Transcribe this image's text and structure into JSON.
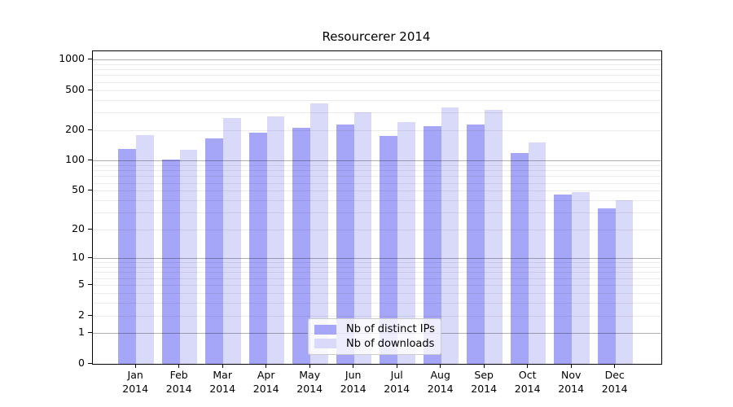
{
  "figure": {
    "background": "#ffffff"
  },
  "chart_data": {
    "type": "bar",
    "title": "Resourcerer 2014",
    "categories": [
      {
        "month": "Jan",
        "year": "2014"
      },
      {
        "month": "Feb",
        "year": "2014"
      },
      {
        "month": "Mar",
        "year": "2014"
      },
      {
        "month": "Apr",
        "year": "2014"
      },
      {
        "month": "May",
        "year": "2014"
      },
      {
        "month": "Jun",
        "year": "2014"
      },
      {
        "month": "Jul",
        "year": "2014"
      },
      {
        "month": "Aug",
        "year": "2014"
      },
      {
        "month": "Sep",
        "year": "2014"
      },
      {
        "month": "Oct",
        "year": "2014"
      },
      {
        "month": "Nov",
        "year": "2014"
      },
      {
        "month": "Dec",
        "year": "2014"
      }
    ],
    "series": [
      {
        "name": "Nb of distinct IPs",
        "color": "#a6a6f8",
        "values": [
          130,
          103,
          165,
          190,
          211,
          230,
          176,
          221,
          228,
          119,
          46,
          33
        ]
      },
      {
        "name": "Nb of downloads",
        "color": "#d9d9fa",
        "values": [
          180,
          127,
          262,
          274,
          368,
          300,
          243,
          337,
          316,
          152,
          48,
          40
        ]
      }
    ],
    "yscale": "log1p",
    "yticks": [
      1000,
      500,
      200,
      100,
      50,
      20,
      10,
      5,
      2,
      1,
      0
    ],
    "ylim": [
      0,
      1200
    ],
    "grid": {
      "major_values": [
        1,
        10,
        100,
        1000
      ],
      "minor_values": [
        2,
        3,
        4,
        5,
        6,
        7,
        8,
        9,
        20,
        30,
        40,
        50,
        60,
        70,
        80,
        90,
        200,
        300,
        400,
        500,
        600,
        700,
        800,
        900
      ],
      "major_color": "rgba(0,0,0,0.30)",
      "minor_color": "rgba(0,0,0,0.08)"
    },
    "legend_position": "lower-center"
  }
}
